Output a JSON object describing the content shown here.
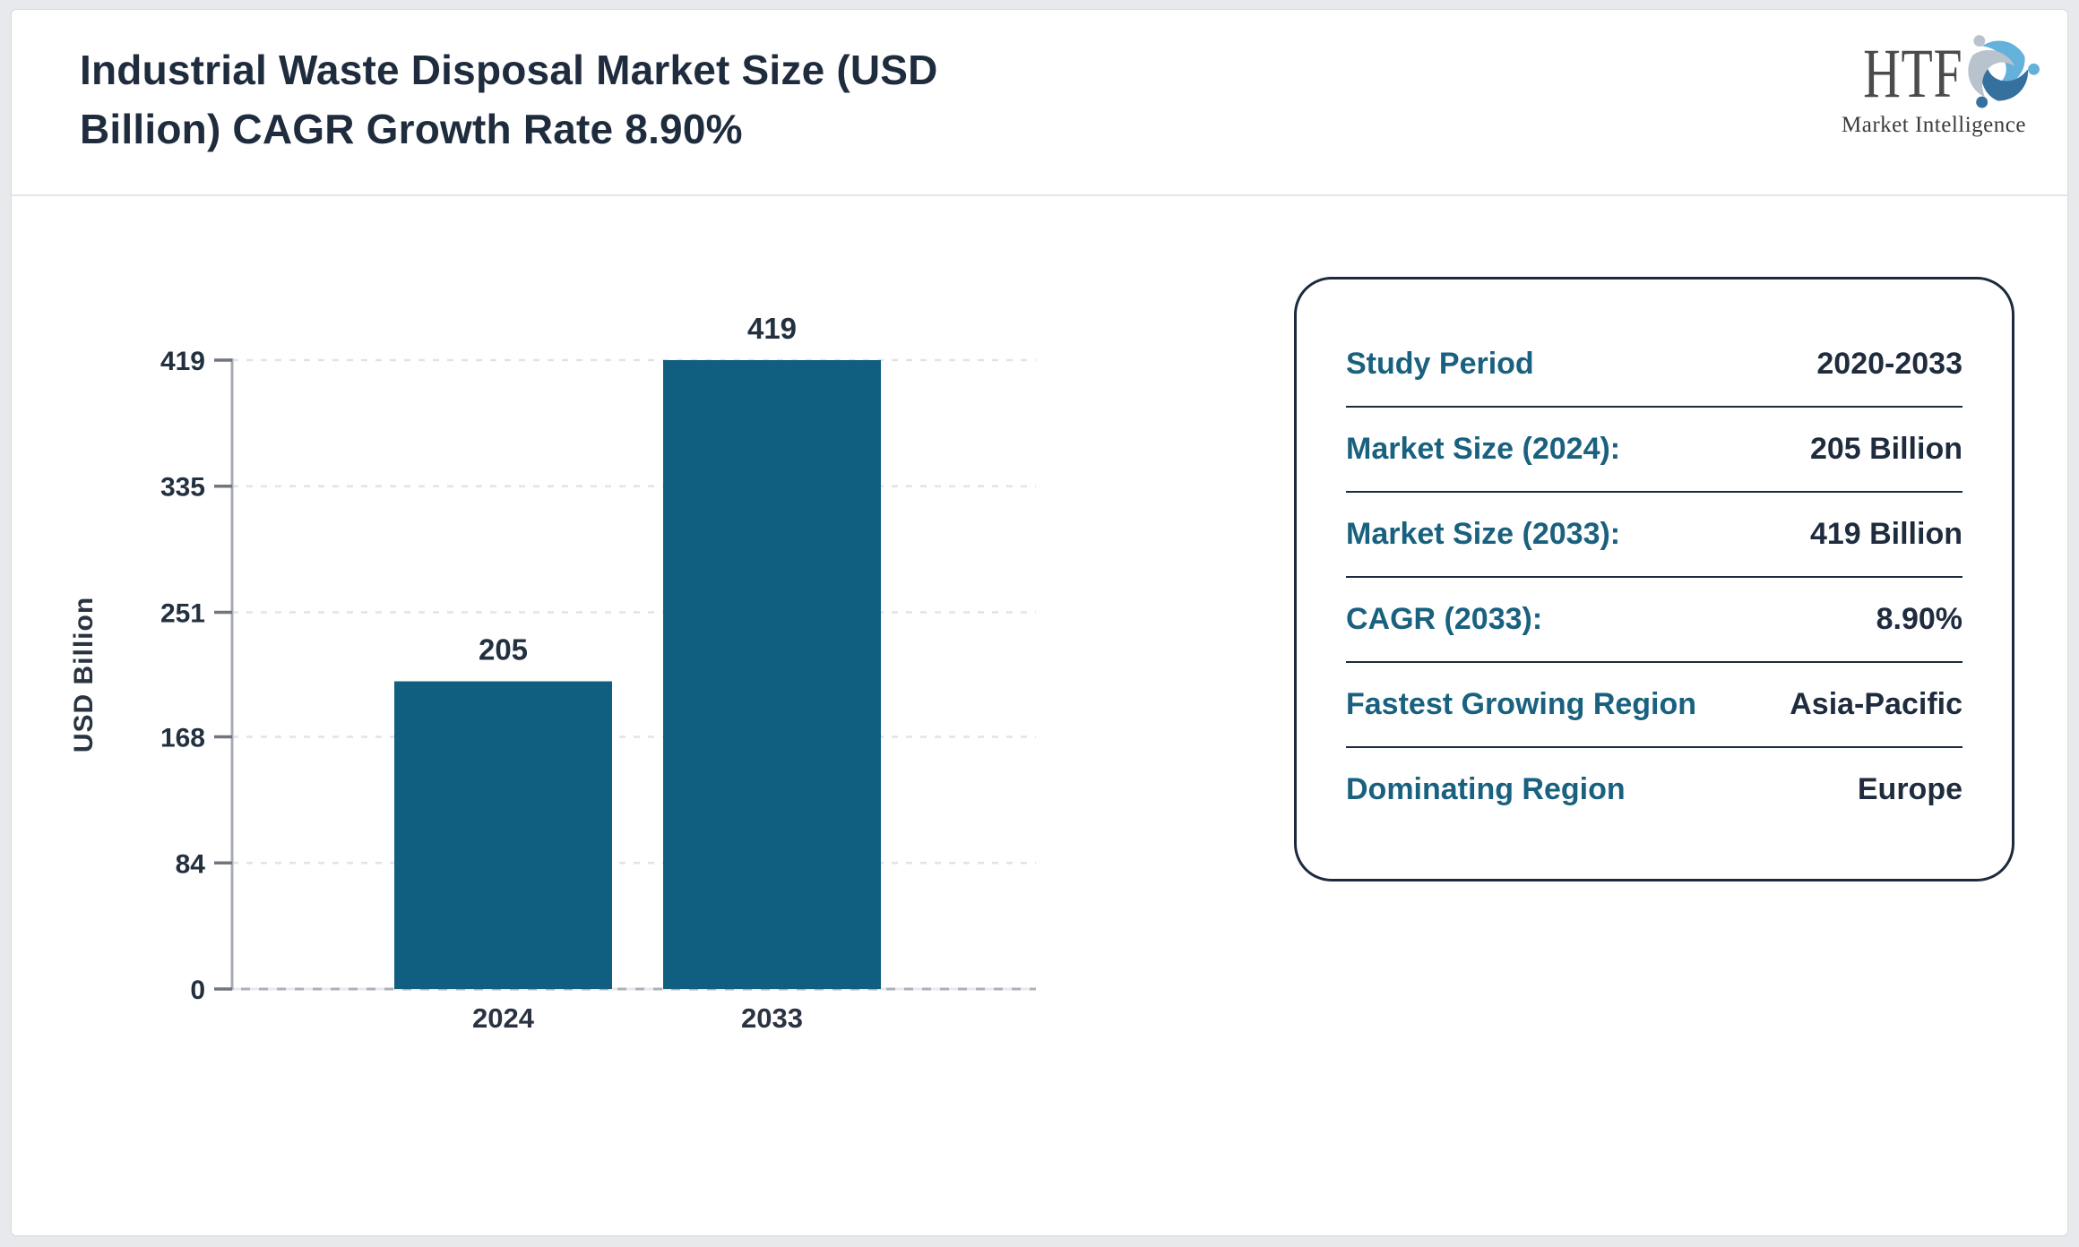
{
  "header": {
    "title_lines": [
      "Industrial Waste Disposal Market Size (USD",
      "Billion) CAGR Growth Rate 8.90%"
    ],
    "title_full": "Industrial Waste Disposal Market Size (USD Billion) CAGR Growth Rate 8.90%",
    "logo": {
      "brand": "HTF",
      "subtitle": "Market Intelligence",
      "swirl_colors": [
        "#64b1dc",
        "#35709e",
        "#b9c3cd"
      ]
    }
  },
  "chart_data": {
    "type": "bar",
    "title": "Industrial Waste Disposal Market Size (USD Billion) CAGR Growth Rate 8.90%",
    "categories": [
      "2024",
      "2033"
    ],
    "values": [
      205,
      419
    ],
    "xlabel": "",
    "ylabel": "USD Billion",
    "ylim": [
      0,
      419
    ],
    "yticks": [
      0,
      84,
      168,
      251,
      335,
      419
    ],
    "bar_color": "#115f80",
    "grid": "dashed-horizontal-on",
    "legend": "none",
    "value_labels_shown": true
  },
  "info_panel": {
    "label_color": "#19617f",
    "value_color": "#1f2c3e",
    "rows": [
      {
        "label": "Study Period",
        "value": "2020-2033"
      },
      {
        "label": "Market Size (2024):",
        "value": "205 Billion"
      },
      {
        "label": "Market Size (2033):",
        "value": "419 Billion"
      },
      {
        "label": "CAGR (2033):",
        "value": "8.90%"
      },
      {
        "label": "Fastest Growing Region",
        "value": "Asia-Pacific"
      },
      {
        "label": "Dominating Region",
        "value": "Europe"
      }
    ]
  }
}
